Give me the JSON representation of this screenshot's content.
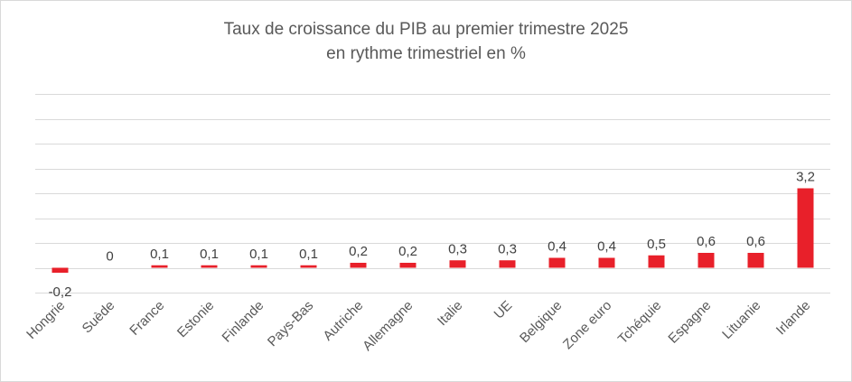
{
  "chart_data": {
    "type": "bar",
    "title_line1": "Taux de croissance du PIB au premier trimestre 2025",
    "title_line2": "en rythme trimestriel en %",
    "categories": [
      "Hongrie",
      "Suède",
      "France",
      "Estonie",
      "Finlande",
      "Pays-Bas",
      "Autriche",
      "Allemagne",
      "Italie",
      "UE",
      "Belgique",
      "Zone euro",
      "Tchéquie",
      "Espagne",
      "Lituanie",
      "Irlande"
    ],
    "values": [
      -0.2,
      0,
      0.1,
      0.1,
      0.1,
      0.1,
      0.2,
      0.2,
      0.3,
      0.3,
      0.4,
      0.4,
      0.5,
      0.6,
      0.6,
      3.2
    ],
    "value_labels": [
      "-0,2",
      "0",
      "0,1",
      "0,1",
      "0,1",
      "0,1",
      "0,2",
      "0,2",
      "0,3",
      "0,3",
      "0,4",
      "0,4",
      "0,5",
      "0,6",
      "0,6",
      "3,2"
    ],
    "ylim": [
      -1,
      7
    ],
    "y_step": 1,
    "grid": true,
    "legend": "none",
    "bar_color": "#e8202a"
  }
}
